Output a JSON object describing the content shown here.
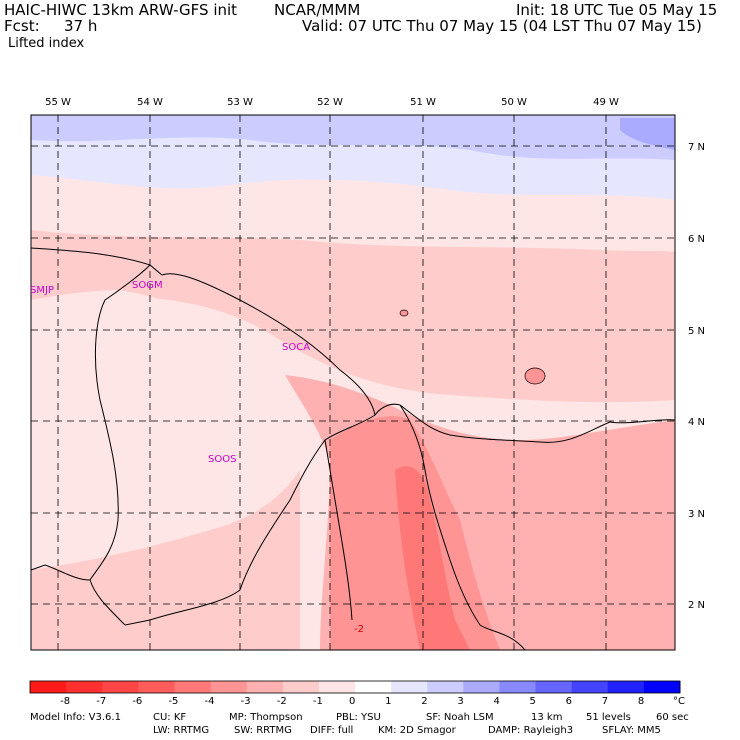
{
  "header": {
    "title_left": "HAIC-HIWC 13km ARW-GFS init",
    "org": "NCAR/MMM",
    "init": "Init: 18 UTC Tue 05 May 15",
    "fcst_label": "Fcst:",
    "fcst_value": "37 h",
    "valid": "Valid: 07 UTC Thu 07 May 15 (04 LST Thu 07 May 15)",
    "field": "Lifted index"
  },
  "map": {
    "lon_labels": [
      "55 W",
      "54 W",
      "53 W",
      "52 W",
      "51 W",
      "50 W",
      "49 W"
    ],
    "lat_labels": [
      "7 N",
      "6 N",
      "5 N",
      "4 N",
      "3 N",
      "2 N"
    ],
    "stations": [
      "SMJP",
      "SOGM",
      "SOCA",
      "SOOS"
    ],
    "contour_label": "-2"
  },
  "colorbar": {
    "labels": [
      "-8",
      "-7",
      "-6",
      "-5",
      "-4",
      "-3",
      "-2",
      "-1",
      "0",
      "1",
      "2",
      "3",
      "4",
      "5",
      "6",
      "7",
      "8"
    ],
    "unit": "°C",
    "colors": [
      "#ff1a1a",
      "#ff3030",
      "#ff4646",
      "#ff5c5c",
      "#ff7878",
      "#ff9494",
      "#ffb0b0",
      "#ffcccc",
      "#ffe6e6",
      "#ffffff",
      "#e6e6ff",
      "#ccccff",
      "#aaaaff",
      "#8888ff",
      "#6666ff",
      "#4444ff",
      "#2222ff",
      "#0000ff"
    ]
  },
  "footer": {
    "line1": [
      "Model Info: V3.6.1",
      "CU: KF",
      "MP: Thompson",
      "PBL: YSU",
      "SF: Noah LSM",
      "13 km",
      "51 levels",
      "60 sec"
    ],
    "line2": [
      "LW: RRTMG",
      "SW: RRTMG",
      "DIFF: full",
      "KM: 2D Smagor",
      "DAMP: Rayleigh3",
      "SFLAY: MM5"
    ]
  }
}
